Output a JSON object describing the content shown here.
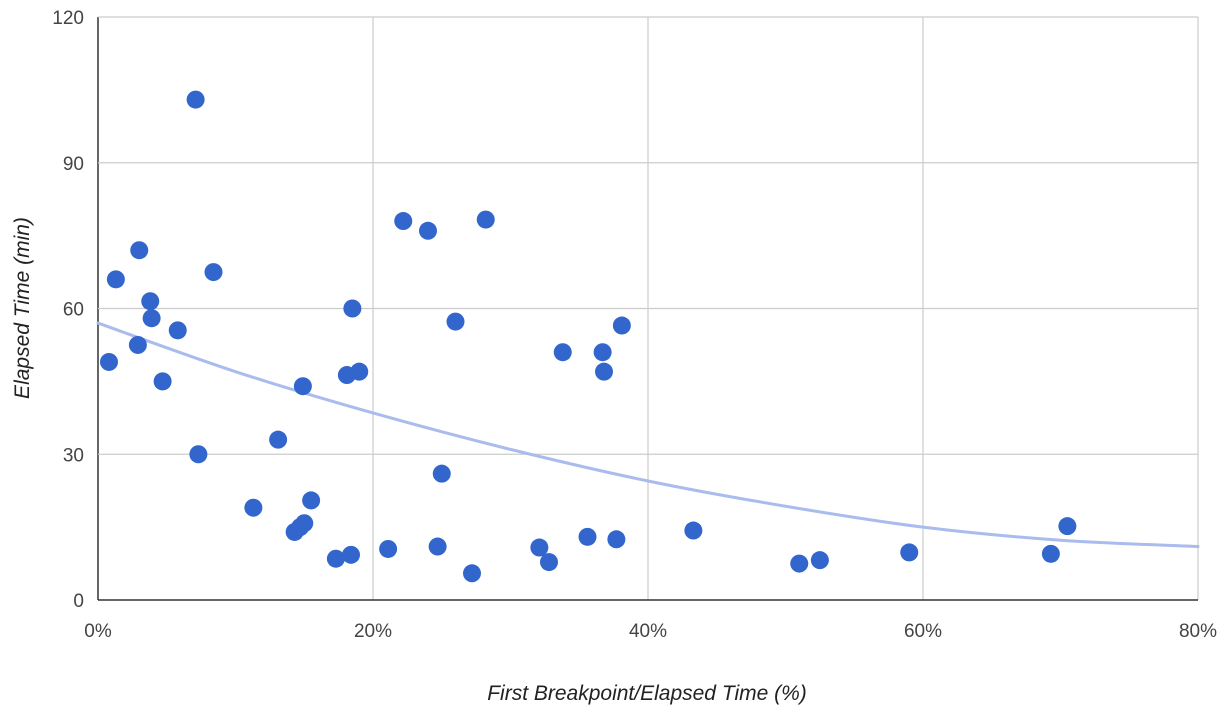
{
  "chart_data": {
    "type": "scatter",
    "xlabel": "First Breakpoint/Elapsed Time (%)",
    "ylabel": "Elapsed Time (min)",
    "xlim": [
      0,
      80
    ],
    "ylim": [
      0,
      120
    ],
    "x_ticks": [
      "0%",
      "20%",
      "40%",
      "60%",
      "80%"
    ],
    "y_ticks": [
      "0",
      "30",
      "60",
      "90",
      "120"
    ],
    "grid": true,
    "legend": "none",
    "point_color": "#3366cc",
    "trendline": {
      "type": "polynomial",
      "color": "#aabbee",
      "points": [
        [
          0,
          57
        ],
        [
          10,
          47
        ],
        [
          20,
          38.5
        ],
        [
          30,
          31
        ],
        [
          40,
          24.5
        ],
        [
          50,
          19.3
        ],
        [
          60,
          15
        ],
        [
          70,
          12.3
        ],
        [
          80,
          11
        ]
      ]
    },
    "points": [
      [
        0.8,
        49
      ],
      [
        1.3,
        66
      ],
      [
        2.9,
        52.5
      ],
      [
        3.0,
        72
      ],
      [
        3.8,
        61.5
      ],
      [
        3.9,
        58
      ],
      [
        4.7,
        45
      ],
      [
        5.8,
        55.5
      ],
      [
        7.1,
        103
      ],
      [
        7.3,
        30
      ],
      [
        8.4,
        67.5
      ],
      [
        11.3,
        19
      ],
      [
        13.1,
        33
      ],
      [
        14.3,
        14
      ],
      [
        14.7,
        15
      ],
      [
        14.9,
        44
      ],
      [
        15.0,
        15.8
      ],
      [
        15.5,
        20.5
      ],
      [
        17.3,
        8.5
      ],
      [
        18.1,
        46.3
      ],
      [
        18.4,
        9.3
      ],
      [
        18.5,
        60
      ],
      [
        19.0,
        47
      ],
      [
        21.1,
        10.5
      ],
      [
        22.2,
        78
      ],
      [
        24.0,
        76
      ],
      [
        24.7,
        11
      ],
      [
        25.0,
        26
      ],
      [
        26.0,
        57.3
      ],
      [
        27.2,
        5.5
      ],
      [
        28.2,
        78.3
      ],
      [
        32.1,
        10.8
      ],
      [
        32.8,
        7.8
      ],
      [
        33.8,
        51
      ],
      [
        35.6,
        13
      ],
      [
        36.7,
        51
      ],
      [
        36.8,
        47
      ],
      [
        37.7,
        12.5
      ],
      [
        38.1,
        56.5
      ],
      [
        43.3,
        14.3
      ],
      [
        51.0,
        7.5
      ],
      [
        52.5,
        8.2
      ],
      [
        59.0,
        9.8
      ],
      [
        69.3,
        9.5
      ],
      [
        70.5,
        15.2
      ]
    ]
  }
}
